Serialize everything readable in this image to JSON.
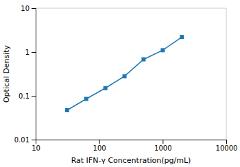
{
  "chart_data": {
    "type": "line",
    "x": [
      31.25,
      62.5,
      125,
      250,
      500,
      1000,
      2000
    ],
    "values": [
      0.047,
      0.085,
      0.15,
      0.28,
      0.68,
      1.1,
      2.2
    ],
    "xlabel": "Rat IFN-γ Concentration(pg/mL)",
    "ylabel": "Optical Density",
    "xlim": [
      10,
      10000
    ],
    "ylim": [
      0.01,
      10
    ],
    "xticks": [
      10,
      100,
      1000,
      10000
    ],
    "yticks": [
      0.01,
      0.1,
      1,
      10
    ],
    "log": true,
    "grid": false,
    "marker": "square",
    "line_style": "solid"
  }
}
